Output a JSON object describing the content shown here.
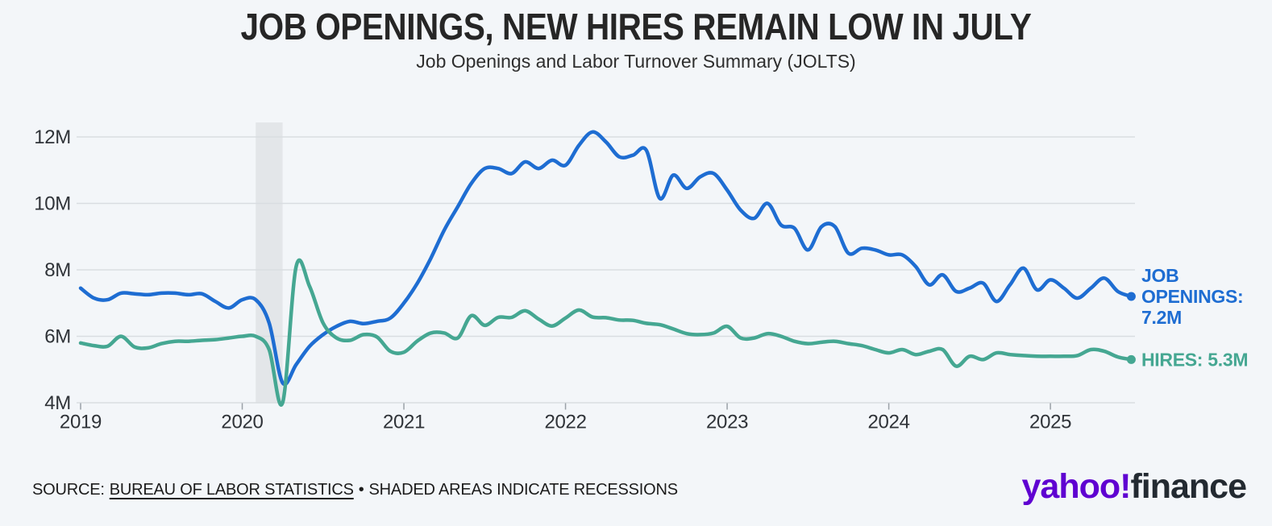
{
  "footer": {
    "source_label": "SOURCE:",
    "source_link": "BUREAU OF LABOR STATISTICS",
    "separator": "•",
    "note": "SHADED AREAS INDICATE RECESSIONS"
  },
  "logo": {
    "yahoo": "yahoo!",
    "finance": "finance"
  },
  "chart_data": {
    "type": "line",
    "title": "JOB OPENINGS, NEW HIRES REMAIN LOW IN JULY",
    "subtitle": "Job Openings and Labor Turnover Summary (JOLTS)",
    "x_unit": "month",
    "x_range": [
      "2019-01",
      "2025-07"
    ],
    "ylim": [
      4,
      12.35
    ],
    "grid": true,
    "legend_position": "right-end-labels",
    "colors": {
      "band": "#e3e6e9",
      "grid": "#d9dde1",
      "tick": "#9aa1a7",
      "axis_text": "#2f3338"
    },
    "y_ticks": [
      {
        "label": "4M",
        "value": 4
      },
      {
        "label": "6M",
        "value": 6
      },
      {
        "label": "8M",
        "value": 8
      },
      {
        "label": "10M",
        "value": 10
      },
      {
        "label": "12M",
        "value": 12
      }
    ],
    "x_ticks": [
      {
        "label": "2019",
        "month": 0
      },
      {
        "label": "2020",
        "month": 12
      },
      {
        "label": "2021",
        "month": 24
      },
      {
        "label": "2022",
        "month": 36
      },
      {
        "label": "2023",
        "month": 48
      },
      {
        "label": "2024",
        "month": 60
      },
      {
        "label": "2025",
        "month": 72
      }
    ],
    "recession_band": {
      "from_month": 13,
      "to_month": 15,
      "note": "Feb-Apr 2020 recession"
    },
    "series": [
      {
        "id": "openings",
        "name": "JOB OPENINGS",
        "color": "#1e6dd2",
        "last_value_label": "7.2M",
        "label_lines": [
          "JOB",
          "OPENINGS:",
          "7.2M"
        ],
        "values": [
          7.45,
          7.15,
          7.1,
          7.3,
          7.28,
          7.25,
          7.3,
          7.3,
          7.25,
          7.28,
          7.05,
          6.85,
          7.1,
          7.1,
          6.4,
          4.6,
          5.15,
          5.7,
          6.05,
          6.3,
          6.45,
          6.38,
          6.45,
          6.55,
          7.0,
          7.6,
          8.35,
          9.2,
          9.9,
          10.6,
          11.05,
          11.05,
          10.9,
          11.25,
          11.05,
          11.3,
          11.15,
          11.75,
          12.15,
          11.85,
          11.4,
          11.45,
          11.6,
          10.15,
          10.85,
          10.45,
          10.8,
          10.9,
          10.4,
          9.8,
          9.55,
          10.0,
          9.35,
          9.25,
          8.6,
          9.3,
          9.3,
          8.5,
          8.65,
          8.6,
          8.45,
          8.45,
          8.1,
          7.55,
          7.85,
          7.35,
          7.45,
          7.6,
          7.05,
          7.55,
          8.05,
          7.4,
          7.7,
          7.45,
          7.15,
          7.45,
          7.75,
          7.35,
          7.2
        ]
      },
      {
        "id": "hires",
        "name": "HIRES",
        "color": "#45a792",
        "last_value_label": "5.3M",
        "label_lines": [
          "HIRES: 5.3M"
        ],
        "values": [
          5.8,
          5.72,
          5.7,
          6.0,
          5.68,
          5.65,
          5.78,
          5.85,
          5.85,
          5.88,
          5.9,
          5.95,
          6.0,
          6.0,
          5.6,
          4.0,
          8.1,
          7.5,
          6.4,
          5.95,
          5.88,
          6.05,
          5.98,
          5.55,
          5.52,
          5.86,
          6.1,
          6.1,
          5.95,
          6.62,
          6.33,
          6.57,
          6.57,
          6.77,
          6.52,
          6.31,
          6.55,
          6.79,
          6.58,
          6.56,
          6.49,
          6.48,
          6.39,
          6.35,
          6.22,
          6.08,
          6.05,
          6.1,
          6.3,
          5.95,
          5.95,
          6.08,
          6.0,
          5.85,
          5.78,
          5.82,
          5.85,
          5.78,
          5.72,
          5.6,
          5.5,
          5.6,
          5.45,
          5.55,
          5.6,
          5.1,
          5.4,
          5.3,
          5.5,
          5.45,
          5.42,
          5.4,
          5.4,
          5.4,
          5.42,
          5.6,
          5.55,
          5.38,
          5.3
        ]
      }
    ]
  }
}
